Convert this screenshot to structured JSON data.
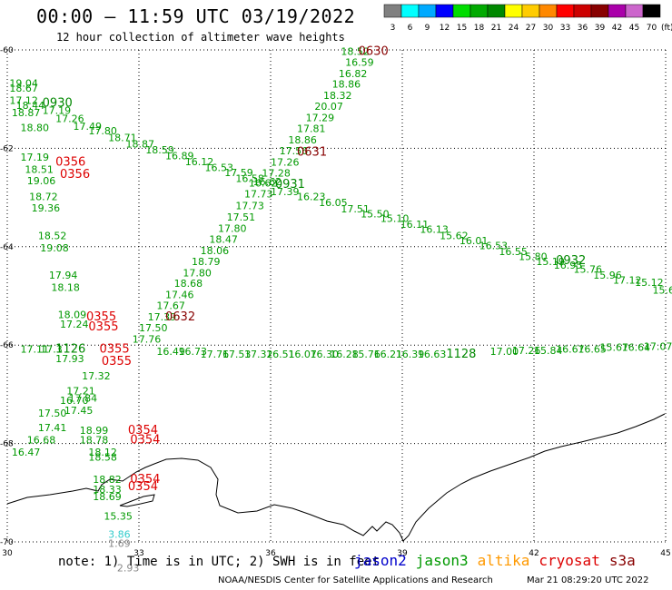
{
  "title": "00:00 – 11:59 UTC 03/19/2022",
  "subtitle": "12 hour collection of altimeter wave heights",
  "legend": {
    "colors": [
      "#808080",
      "#00ffff",
      "#00aaff",
      "#0000ff",
      "#00dd00",
      "#00aa00",
      "#008800",
      "#ffff00",
      "#ffcc00",
      "#ff8800",
      "#ff0000",
      "#cc0000",
      "#880000",
      "#aa00aa",
      "#cc66cc",
      "#000000"
    ],
    "labels": [
      "3",
      "6",
      "9",
      "12",
      "15",
      "18",
      "21",
      "24",
      "27",
      "30",
      "33",
      "36",
      "39",
      "42",
      "45",
      "70"
    ],
    "unit": "(ft)"
  },
  "axes": {
    "lat_labels": [
      "-60",
      "-62",
      "-64",
      "-66",
      "-68",
      "-70"
    ],
    "lon_labels": [
      "30",
      "33",
      "36",
      "39",
      "42",
      "45"
    ]
  },
  "swh_labels": [
    {
      "t": "18.52",
      "lon": 37.6,
      "lat": -60.1,
      "c": "#009900"
    },
    {
      "t": "16.59",
      "lon": 37.7,
      "lat": -60.32,
      "c": "#009900"
    },
    {
      "t": "16.82",
      "lon": 37.55,
      "lat": -60.55,
      "c": "#009900"
    },
    {
      "t": "18.86",
      "lon": 37.4,
      "lat": -60.77,
      "c": "#009900"
    },
    {
      "t": "18.32",
      "lon": 37.2,
      "lat": -61.0,
      "c": "#009900"
    },
    {
      "t": "20.07",
      "lon": 37.0,
      "lat": -61.22,
      "c": "#009900"
    },
    {
      "t": "17.29",
      "lon": 36.8,
      "lat": -61.45,
      "c": "#009900"
    },
    {
      "t": "17.81",
      "lon": 36.6,
      "lat": -61.67,
      "c": "#009900"
    },
    {
      "t": "18.86",
      "lon": 36.4,
      "lat": -61.9,
      "c": "#009900"
    },
    {
      "t": "17.56",
      "lon": 36.2,
      "lat": -62.12,
      "c": "#009900"
    },
    {
      "t": "17.26",
      "lon": 36.0,
      "lat": -62.35,
      "c": "#009900"
    },
    {
      "t": "17.28",
      "lon": 35.8,
      "lat": -62.57,
      "c": "#009900"
    },
    {
      "t": "16.62",
      "lon": 35.6,
      "lat": -62.75,
      "c": "#009900"
    },
    {
      "t": "17.73",
      "lon": 35.4,
      "lat": -63.0,
      "c": "#009900"
    },
    {
      "t": "17.73",
      "lon": 35.2,
      "lat": -63.24,
      "c": "#009900"
    },
    {
      "t": "17.51",
      "lon": 35.0,
      "lat": -63.47,
      "c": "#009900"
    },
    {
      "t": "17.80",
      "lon": 34.8,
      "lat": -63.7,
      "c": "#009900"
    },
    {
      "t": "18.47",
      "lon": 34.6,
      "lat": -63.92,
      "c": "#009900"
    },
    {
      "t": "18.06",
      "lon": 34.4,
      "lat": -64.15,
      "c": "#009900"
    },
    {
      "t": "18.79",
      "lon": 34.2,
      "lat": -64.37,
      "c": "#009900"
    },
    {
      "t": "17.80",
      "lon": 34.0,
      "lat": -64.6,
      "c": "#009900"
    },
    {
      "t": "18.68",
      "lon": 33.8,
      "lat": -64.82,
      "c": "#009900"
    },
    {
      "t": "17.46",
      "lon": 33.6,
      "lat": -65.05,
      "c": "#009900"
    },
    {
      "t": "17.67",
      "lon": 33.4,
      "lat": -65.27,
      "c": "#009900"
    },
    {
      "t": "17.39",
      "lon": 33.2,
      "lat": -65.5,
      "c": "#009900"
    },
    {
      "t": "17.50",
      "lon": 33.0,
      "lat": -65.72,
      "c": "#009900"
    },
    {
      "t": "17.76",
      "lon": 32.85,
      "lat": -65.95,
      "c": "#009900"
    },
    {
      "t": "19.04",
      "lon": 30.05,
      "lat": -60.75,
      "c": "#009900"
    },
    {
      "t": "18.67",
      "lon": 30.05,
      "lat": -60.85,
      "c": "#009900"
    },
    {
      "t": "17.12",
      "lon": 30.05,
      "lat": -61.1,
      "c": "#009900"
    },
    {
      "t": "18.44",
      "lon": 30.2,
      "lat": -61.2,
      "c": "#009900"
    },
    {
      "t": "17.19",
      "lon": 30.8,
      "lat": -61.3,
      "c": "#009900"
    },
    {
      "t": "18.87",
      "lon": 30.1,
      "lat": -61.35,
      "c": "#009900"
    },
    {
      "t": "17.26",
      "lon": 31.1,
      "lat": -61.47,
      "c": "#009900"
    },
    {
      "t": "17.49",
      "lon": 31.5,
      "lat": -61.62,
      "c": "#009900"
    },
    {
      "t": "18.80",
      "lon": 30.3,
      "lat": -61.65,
      "c": "#009900"
    },
    {
      "t": "17.80",
      "lon": 31.85,
      "lat": -61.72,
      "c": "#009900"
    },
    {
      "t": "18.71",
      "lon": 32.3,
      "lat": -61.85,
      "c": "#009900"
    },
    {
      "t": "18.87",
      "lon": 32.7,
      "lat": -61.98,
      "c": "#009900"
    },
    {
      "t": "18.59",
      "lon": 33.15,
      "lat": -62.1,
      "c": "#009900"
    },
    {
      "t": "16.89",
      "lon": 33.6,
      "lat": -62.22,
      "c": "#009900"
    },
    {
      "t": "16.12",
      "lon": 34.05,
      "lat": -62.34,
      "c": "#009900"
    },
    {
      "t": "16.53",
      "lon": 34.5,
      "lat": -62.46,
      "c": "#009900"
    },
    {
      "t": "17.59",
      "lon": 34.95,
      "lat": -62.56,
      "c": "#009900"
    },
    {
      "t": "16.58",
      "lon": 35.2,
      "lat": -62.68,
      "c": "#009900"
    },
    {
      "t": "16.62",
      "lon": 35.5,
      "lat": -62.78,
      "c": "#009900"
    },
    {
      "t": "17.39",
      "lon": 36.0,
      "lat": -62.95,
      "c": "#009900"
    },
    {
      "t": "16.23",
      "lon": 36.6,
      "lat": -63.05,
      "c": "#009900"
    },
    {
      "t": "16.05",
      "lon": 37.1,
      "lat": -63.17,
      "c": "#009900"
    },
    {
      "t": "17.51",
      "lon": 37.6,
      "lat": -63.3,
      "c": "#009900"
    },
    {
      "t": "15.50",
      "lon": 38.05,
      "lat": -63.4,
      "c": "#009900"
    },
    {
      "t": "15.10",
      "lon": 38.5,
      "lat": -63.5,
      "c": "#009900"
    },
    {
      "t": "16.11",
      "lon": 38.95,
      "lat": -63.62,
      "c": "#009900"
    },
    {
      "t": "16.13",
      "lon": 39.4,
      "lat": -63.72,
      "c": "#009900"
    },
    {
      "t": "15.62",
      "lon": 39.85,
      "lat": -63.85,
      "c": "#009900"
    },
    {
      "t": "16.01",
      "lon": 40.3,
      "lat": -63.95,
      "c": "#009900"
    },
    {
      "t": "16.53",
      "lon": 40.75,
      "lat": -64.05,
      "c": "#009900"
    },
    {
      "t": "16.55",
      "lon": 41.2,
      "lat": -64.17,
      "c": "#009900"
    },
    {
      "t": "15.80",
      "lon": 41.65,
      "lat": -64.27,
      "c": "#009900"
    },
    {
      "t": "15.19",
      "lon": 42.05,
      "lat": -64.37,
      "c": "#009900"
    },
    {
      "t": "16.95",
      "lon": 42.45,
      "lat": -64.45,
      "c": "#009900"
    },
    {
      "t": "15.76",
      "lon": 42.9,
      "lat": -64.53,
      "c": "#009900"
    },
    {
      "t": "15.96",
      "lon": 43.35,
      "lat": -64.65,
      "c": "#009900"
    },
    {
      "t": "17.12",
      "lon": 43.8,
      "lat": -64.75,
      "c": "#009900"
    },
    {
      "t": "15.12",
      "lon": 44.3,
      "lat": -64.8,
      "c": "#009900"
    },
    {
      "t": "15.67",
      "lon": 44.7,
      "lat": -64.95,
      "c": "#009900"
    },
    {
      "t": "17.19",
      "lon": 30.3,
      "lat": -62.25,
      "c": "#009900"
    },
    {
      "t": "18.51",
      "lon": 30.4,
      "lat": -62.5,
      "c": "#009900"
    },
    {
      "t": "19.06",
      "lon": 30.45,
      "lat": -62.73,
      "c": "#009900"
    },
    {
      "t": "18.72",
      "lon": 30.5,
      "lat": -63.05,
      "c": "#009900"
    },
    {
      "t": "19.36",
      "lon": 30.55,
      "lat": -63.28,
      "c": "#009900"
    },
    {
      "t": "18.52",
      "lon": 30.7,
      "lat": -63.85,
      "c": "#009900"
    },
    {
      "t": "19.08",
      "lon": 30.75,
      "lat": -64.1,
      "c": "#009900"
    },
    {
      "t": "17.94",
      "lon": 30.95,
      "lat": -64.65,
      "c": "#009900"
    },
    {
      "t": "18.18",
      "lon": 31.0,
      "lat": -64.9,
      "c": "#009900"
    },
    {
      "t": "18.09",
      "lon": 31.15,
      "lat": -65.45,
      "c": "#009900"
    },
    {
      "t": "17.24",
      "lon": 31.2,
      "lat": -65.65,
      "c": "#009900"
    },
    {
      "t": "17.11",
      "lon": 30.3,
      "lat": -66.15,
      "c": "#009900"
    },
    {
      "t": "17.3",
      "lon": 30.75,
      "lat": -66.15,
      "c": "#009900"
    },
    {
      "t": "16.49",
      "lon": 33.4,
      "lat": -66.2,
      "c": "#009900"
    },
    {
      "t": "16.73",
      "lon": 33.9,
      "lat": -66.2,
      "c": "#009900"
    },
    {
      "t": "17.76",
      "lon": 34.4,
      "lat": -66.25,
      "c": "#009900"
    },
    {
      "t": "17.53",
      "lon": 34.9,
      "lat": -66.25,
      "c": "#009900"
    },
    {
      "t": "17.32",
      "lon": 35.4,
      "lat": -66.25,
      "c": "#009900"
    },
    {
      "t": "16.51",
      "lon": 35.9,
      "lat": -66.25,
      "c": "#009900"
    },
    {
      "t": "16.07",
      "lon": 36.4,
      "lat": -66.25,
      "c": "#009900"
    },
    {
      "t": "16.30",
      "lon": 36.9,
      "lat": -66.25,
      "c": "#009900"
    },
    {
      "t": "16.28",
      "lon": 37.35,
      "lat": -66.25,
      "c": "#009900"
    },
    {
      "t": "15.76",
      "lon": 37.85,
      "lat": -66.25,
      "c": "#009900"
    },
    {
      "t": "16.21",
      "lon": 38.35,
      "lat": -66.25,
      "c": "#009900"
    },
    {
      "t": "16.39",
      "lon": 38.85,
      "lat": -66.25,
      "c": "#009900"
    },
    {
      "t": "16.63",
      "lon": 39.35,
      "lat": -66.25,
      "c": "#009900"
    },
    {
      "t": "17.00",
      "lon": 41.0,
      "lat": -66.2,
      "c": "#009900"
    },
    {
      "t": "17.26",
      "lon": 41.5,
      "lat": -66.18,
      "c": "#009900"
    },
    {
      "t": "15.84",
      "lon": 42.0,
      "lat": -66.18,
      "c": "#009900"
    },
    {
      "t": "16.67",
      "lon": 42.5,
      "lat": -66.15,
      "c": "#009900"
    },
    {
      "t": "16.65",
      "lon": 43.0,
      "lat": -66.15,
      "c": "#009900"
    },
    {
      "t": "15.67",
      "lon": 43.5,
      "lat": -66.12,
      "c": "#009900"
    },
    {
      "t": "16.64",
      "lon": 44.0,
      "lat": -66.12,
      "c": "#009900"
    },
    {
      "t": "17.07",
      "lon": 44.5,
      "lat": -66.1,
      "c": "#009900"
    },
    {
      "t": "17.93",
      "lon": 31.1,
      "lat": -66.35,
      "c": "#009900"
    },
    {
      "t": "17.32",
      "lon": 31.7,
      "lat": -66.7,
      "c": "#009900"
    },
    {
      "t": "17.21",
      "lon": 31.35,
      "lat": -67.0,
      "c": "#009900"
    },
    {
      "t": "17.84",
      "lon": 31.4,
      "lat": -67.15,
      "c": "#009900"
    },
    {
      "t": "16.70",
      "lon": 31.2,
      "lat": -67.2,
      "c": "#009900"
    },
    {
      "t": "17.45",
      "lon": 31.3,
      "lat": -67.4,
      "c": "#009900"
    },
    {
      "t": "17.50",
      "lon": 30.7,
      "lat": -67.45,
      "c": "#009900"
    },
    {
      "t": "17.41",
      "lon": 30.7,
      "lat": -67.75,
      "c": "#009900"
    },
    {
      "t": "16.68",
      "lon": 30.45,
      "lat": -68.0,
      "c": "#009900"
    },
    {
      "t": "16.47",
      "lon": 30.1,
      "lat": -68.25,
      "c": "#009900"
    },
    {
      "t": "18.99",
      "lon": 31.65,
      "lat": -67.8,
      "c": "#009900"
    },
    {
      "t": "18.78",
      "lon": 31.65,
      "lat": -68.0,
      "c": "#009900"
    },
    {
      "t": "18.12",
      "lon": 31.85,
      "lat": -68.25,
      "c": "#009900"
    },
    {
      "t": "18.58",
      "lon": 31.85,
      "lat": -68.35,
      "c": "#009900"
    },
    {
      "t": "18.82",
      "lon": 31.95,
      "lat": -68.8,
      "c": "#009900"
    },
    {
      "t": "18.33",
      "lon": 31.95,
      "lat": -69.0,
      "c": "#009900"
    },
    {
      "t": "18.69",
      "lon": 31.95,
      "lat": -69.15,
      "c": "#009900"
    },
    {
      "t": "15.35",
      "lon": 32.2,
      "lat": -69.55,
      "c": "#009900"
    },
    {
      "t": "3.86",
      "lon": 32.3,
      "lat": -69.92,
      "c": "#33cccc"
    },
    {
      "t": "1.69",
      "lon": 32.3,
      "lat": -70.1,
      "c": "#888888"
    },
    {
      "t": "2.93",
      "lon": 32.5,
      "lat": -70.6,
      "c": "#888888"
    }
  ],
  "time_labels": [
    {
      "t": "0630",
      "lon": 38.0,
      "lat": -60.1,
      "c": "#880000"
    },
    {
      "t": "0930",
      "lon": 30.8,
      "lat": -61.15,
      "c": "#008800"
    },
    {
      "t": "0631",
      "lon": 36.6,
      "lat": -62.15,
      "c": "#880000"
    },
    {
      "t": "0356",
      "lon": 31.1,
      "lat": -62.35,
      "c": "#dd0000"
    },
    {
      "t": "0356",
      "lon": 31.2,
      "lat": -62.6,
      "c": "#dd0000"
    },
    {
      "t": "0931",
      "lon": 36.1,
      "lat": -62.8,
      "c": "#008800"
    },
    {
      "t": "0932",
      "lon": 42.5,
      "lat": -64.35,
      "c": "#008800"
    },
    {
      "t": "0355",
      "lon": 31.8,
      "lat": -65.5,
      "c": "#dd0000"
    },
    {
      "t": "0355",
      "lon": 31.85,
      "lat": -65.7,
      "c": "#dd0000"
    },
    {
      "t": "0632",
      "lon": 33.6,
      "lat": -65.5,
      "c": "#880000"
    },
    {
      "t": "1126",
      "lon": 31.1,
      "lat": -66.15,
      "c": "#008800"
    },
    {
      "t": "0355",
      "lon": 32.1,
      "lat": -66.15,
      "c": "#dd0000"
    },
    {
      "t": "0355",
      "lon": 32.15,
      "lat": -66.4,
      "c": "#dd0000"
    },
    {
      "t": "1128",
      "lon": 40.0,
      "lat": -66.25,
      "c": "#008800"
    },
    {
      "t": "0354",
      "lon": 32.75,
      "lat": -67.8,
      "c": "#dd0000"
    },
    {
      "t": "0354",
      "lon": 32.8,
      "lat": -68.0,
      "c": "#dd0000"
    },
    {
      "t": "0354",
      "lon": 32.8,
      "lat": -68.8,
      "c": "#dd0000"
    },
    {
      "t": "0354",
      "lon": 32.75,
      "lat": -68.95,
      "c": "#dd0000"
    }
  ],
  "footer": {
    "note": "note:  1) Time is in UTC;  2) SWH is in feet",
    "satellites": [
      {
        "name": "jason2",
        "color": "#0000cc"
      },
      {
        "name": "jason3",
        "color": "#009900"
      },
      {
        "name": "altika",
        "color": "#ff9900"
      },
      {
        "name": "cryosat",
        "color": "#dd0000"
      },
      {
        "name": "s3a",
        "color": "#880000"
      }
    ],
    "credit": "NOAA/NESDIS Center for Satellite Applications and Research",
    "stamp": "Mar 21 08:29:20 UTC 2022"
  }
}
